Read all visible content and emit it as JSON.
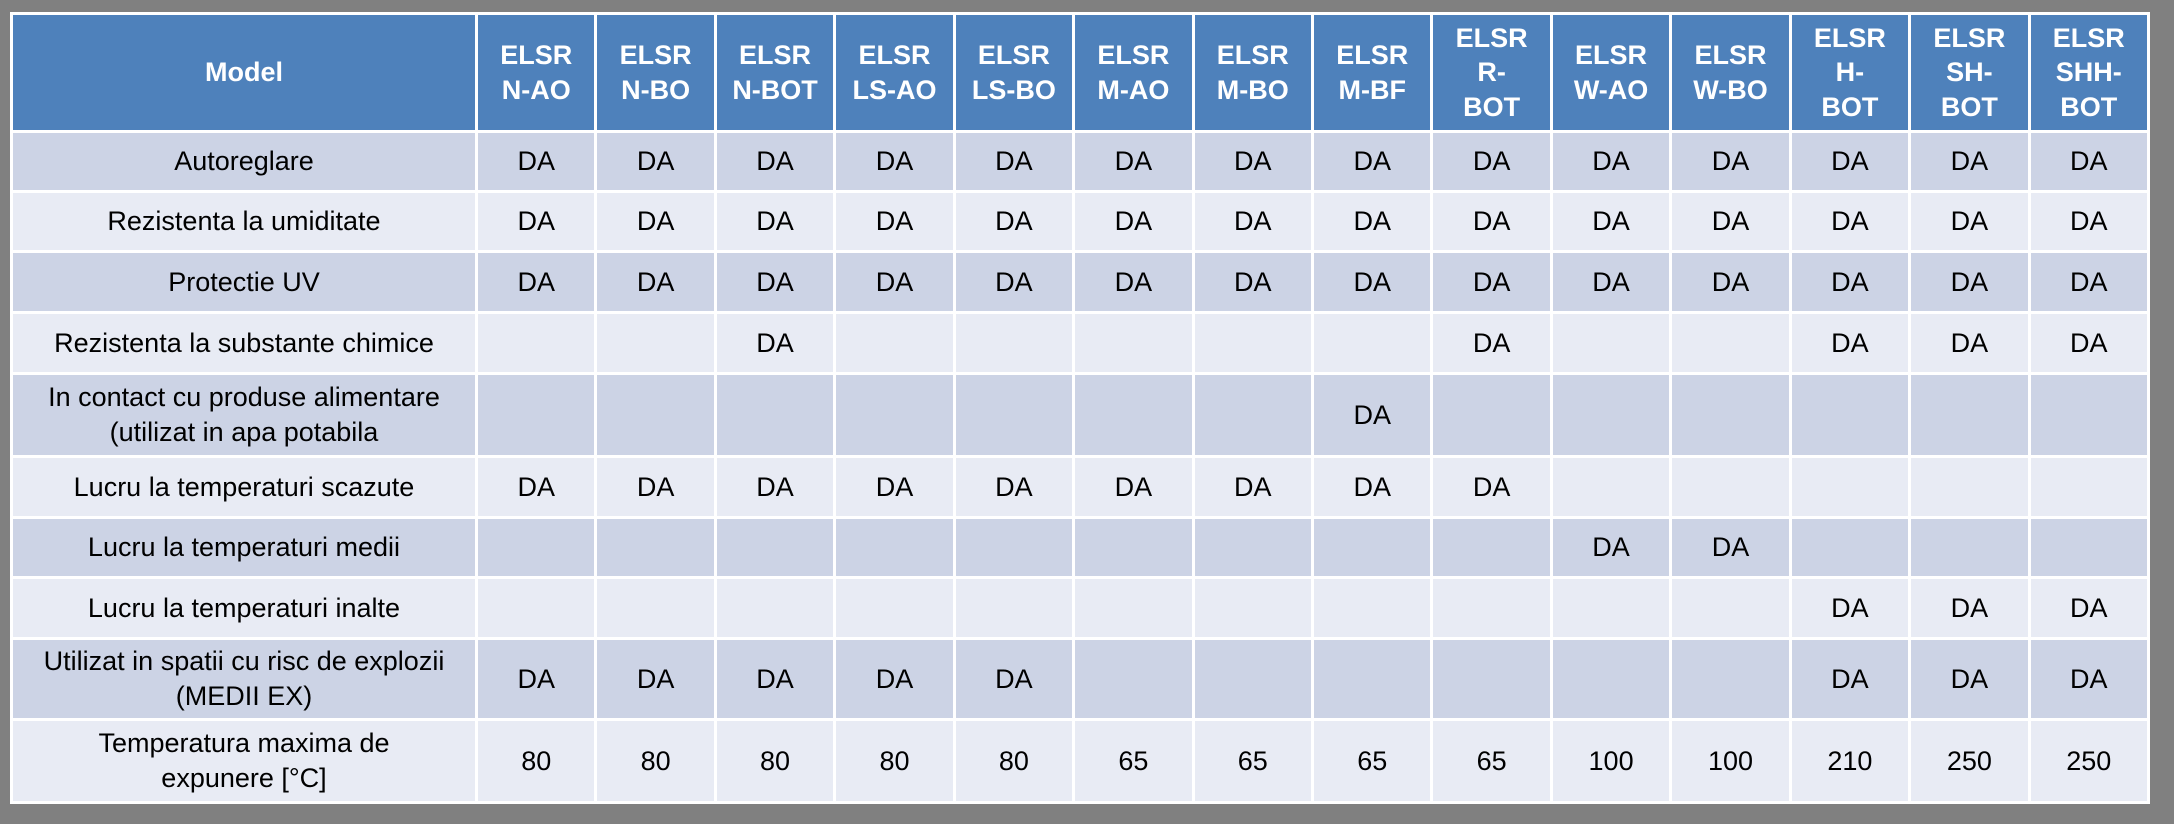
{
  "table": {
    "columns": [
      "Model",
      "ELSR\nN-AO",
      "ELSR\nN-BO",
      "ELSR\nN-BOT",
      "ELSR\nLS-AO",
      "ELSR\nLS-BO",
      "ELSR\nM-AO",
      "ELSR\nM-BO",
      "ELSR\nM-BF",
      "ELSR\nR-\nBOT",
      "ELSR\nW-AO",
      "ELSR\nW-BO",
      "ELSR\nH-\nBOT",
      "ELSR\nSH-\nBOT",
      "ELSR\nSHH-\nBOT"
    ],
    "rows": [
      {
        "label": "Autoreglare",
        "values": [
          "DA",
          "DA",
          "DA",
          "DA",
          "DA",
          "DA",
          "DA",
          "DA",
          "DA",
          "DA",
          "DA",
          "DA",
          "DA",
          "DA"
        ]
      },
      {
        "label": "Rezistenta la umiditate",
        "values": [
          "DA",
          "DA",
          "DA",
          "DA",
          "DA",
          "DA",
          "DA",
          "DA",
          "DA",
          "DA",
          "DA",
          "DA",
          "DA",
          "DA"
        ]
      },
      {
        "label": "Protectie UV",
        "values": [
          "DA",
          "DA",
          "DA",
          "DA",
          "DA",
          "DA",
          "DA",
          "DA",
          "DA",
          "DA",
          "DA",
          "DA",
          "DA",
          "DA"
        ]
      },
      {
        "label": "Rezistenta la substante chimice",
        "values": [
          "",
          "",
          "DA",
          "",
          "",
          "",
          "",
          "",
          "DA",
          "",
          "",
          "DA",
          "DA",
          "DA"
        ]
      },
      {
        "label": "In contact cu produse alimentare\n(utilizat in apa potabila",
        "values": [
          "",
          "",
          "",
          "",
          "",
          "",
          "",
          "DA",
          "",
          "",
          "",
          "",
          "",
          ""
        ]
      },
      {
        "label": "Lucru la temperaturi scazute",
        "values": [
          "DA",
          "DA",
          "DA",
          "DA",
          "DA",
          "DA",
          "DA",
          "DA",
          "DA",
          "",
          "",
          "",
          "",
          ""
        ]
      },
      {
        "label": "Lucru la temperaturi medii",
        "values": [
          "",
          "",
          "",
          "",
          "",
          "",
          "",
          "",
          "",
          "DA",
          "DA",
          "",
          "",
          ""
        ]
      },
      {
        "label": "Lucru la temperaturi inalte",
        "values": [
          "",
          "",
          "",
          "",
          "",
          "",
          "",
          "",
          "",
          "",
          "",
          "DA",
          "DA",
          "DA"
        ]
      },
      {
        "label": "Utilizat in spatii cu risc de explozii\n(MEDII EX)",
        "values": [
          "DA",
          "DA",
          "DA",
          "DA",
          "DA",
          "",
          "",
          "",
          "",
          "",
          "",
          "DA",
          "DA",
          "DA"
        ]
      },
      {
        "label": "Temperatura maxima de\nexpunere [°C]",
        "values": [
          "80",
          "80",
          "80",
          "80",
          "80",
          "65",
          "65",
          "65",
          "65",
          "100",
          "100",
          "210",
          "250",
          "250"
        ]
      }
    ]
  },
  "colors": {
    "header_blue": "#4E81BB",
    "row_dark": "#CCD3E5",
    "row_light": "#E8EBF4",
    "gridline": "#FFFFFF",
    "background_gray": "#808080",
    "header_text": "#FFFFFF",
    "body_text": "#000000"
  }
}
